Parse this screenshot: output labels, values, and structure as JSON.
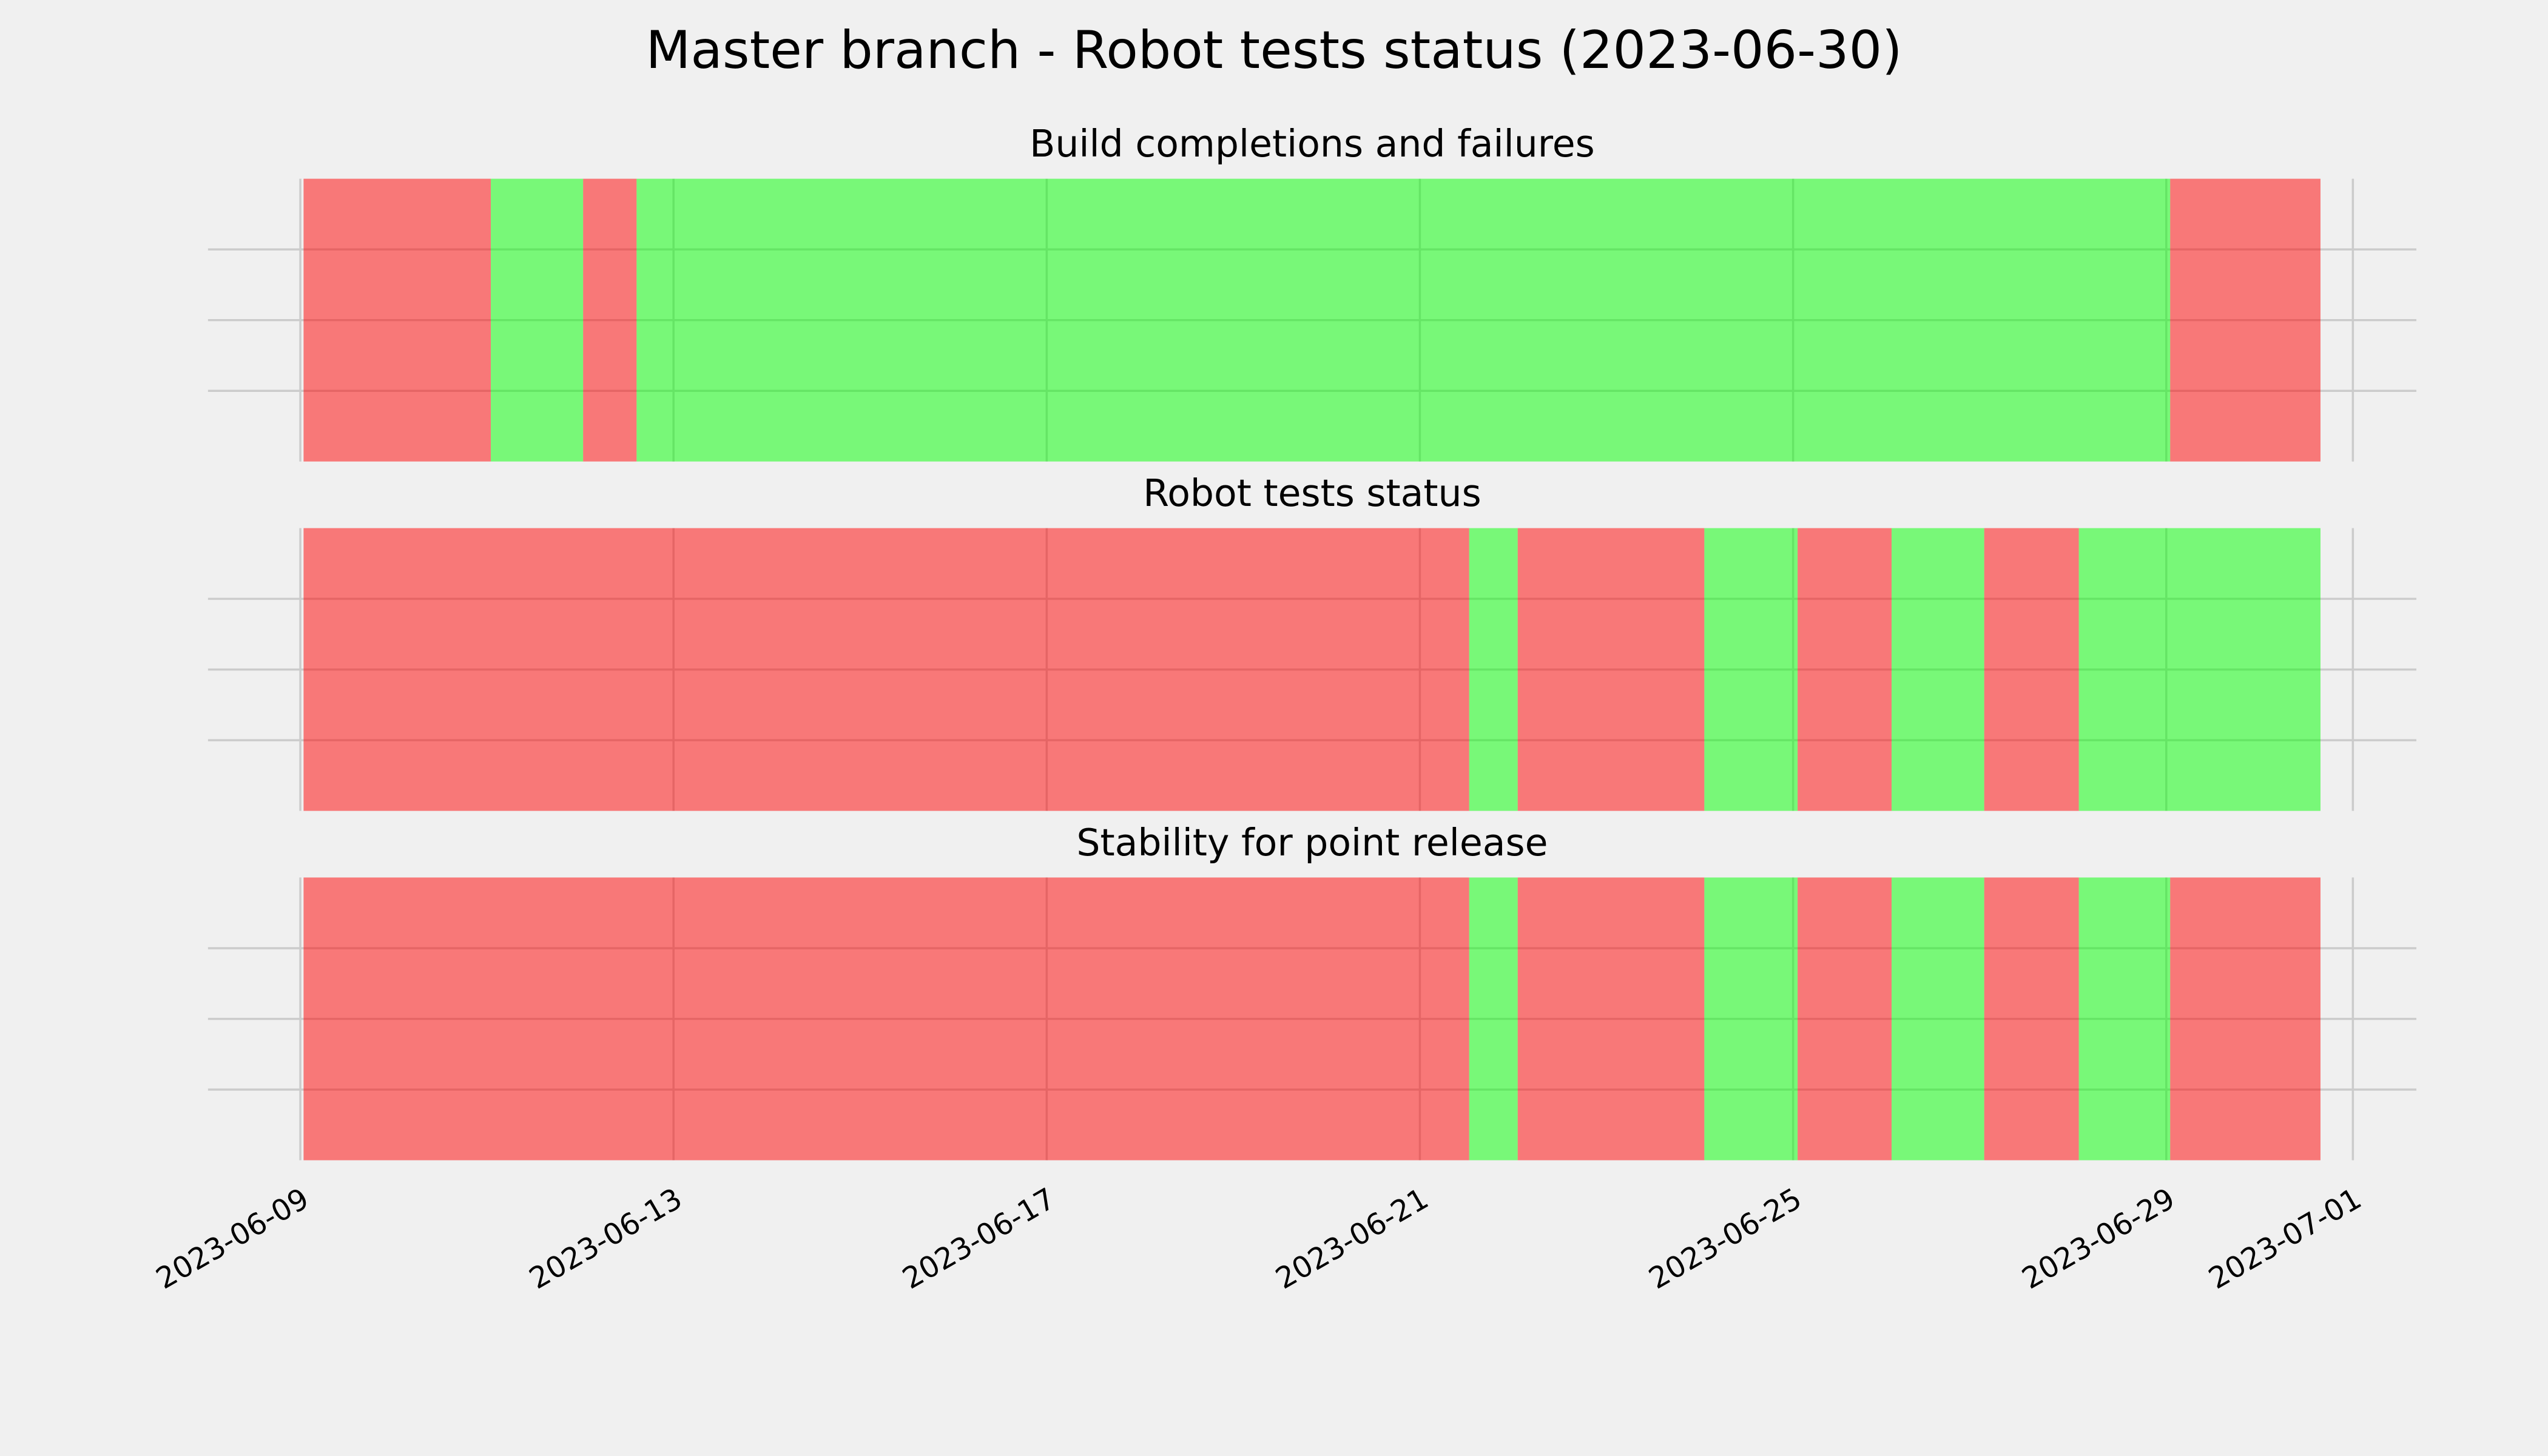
{
  "title": "Master branch - Robot tests status (2023-06-30)",
  "chart_data": [
    {
      "type": "timeline",
      "title": "Build completions and failures",
      "x": [
        "2023-06-09T00:50",
        "2023-06-11T01:00",
        "2023-06-12T00:45",
        "2023-06-12T14:30",
        "2023-06-29T01:00",
        "2023-06-30T15:40"
      ],
      "colors": [
        "#ff0000",
        "#00ff00",
        "#ff0000",
        "#00ff00",
        "#ff0000"
      ],
      "xlim": [
        "2023-06-08T00:15",
        "2023-07-01T16:20"
      ],
      "xticks": [
        "2023-06-09",
        "2023-06-13",
        "2023-06-17",
        "2023-06-21",
        "2023-06-25",
        "2023-06-29",
        "2023-07-01"
      ],
      "ylim": [
        0,
        1
      ],
      "yticks": [
        0.25,
        0.5,
        0.75
      ],
      "grid": true
    },
    {
      "type": "timeline",
      "title": "Robot tests status",
      "x": [
        "2023-06-09T00:50",
        "2023-06-21T12:40",
        "2023-06-22T01:10",
        "2023-06-24T01:10",
        "2023-06-25T01:10",
        "2023-06-26T01:20",
        "2023-06-27T01:10",
        "2023-06-28T01:30",
        "2023-06-30T15:40"
      ],
      "colors": [
        "#ff0000",
        "#00ff00",
        "#ff0000",
        "#00ff00",
        "#ff0000",
        "#00ff00",
        "#ff0000",
        "#00ff00"
      ],
      "xlim": [
        "2023-06-08T00:15",
        "2023-07-01T16:20"
      ],
      "xticks": [
        "2023-06-09",
        "2023-06-13",
        "2023-06-17",
        "2023-06-21",
        "2023-06-25",
        "2023-06-29",
        "2023-07-01"
      ],
      "ylim": [
        0,
        1
      ],
      "yticks": [
        0.25,
        0.5,
        0.75
      ],
      "grid": true
    },
    {
      "type": "timeline",
      "title": "Stability for point release",
      "x": [
        "2023-06-09T00:50",
        "2023-06-21T12:40",
        "2023-06-22T01:10",
        "2023-06-24T01:10",
        "2023-06-25T01:10",
        "2023-06-26T01:20",
        "2023-06-27T01:10",
        "2023-06-28T01:30",
        "2023-06-29T01:00",
        "2023-06-30T15:40"
      ],
      "colors": [
        "#ff0000",
        "#00ff00",
        "#ff0000",
        "#00ff00",
        "#ff0000",
        "#00ff00",
        "#ff0000",
        "#00ff00",
        "#ff0000"
      ],
      "xlim": [
        "2023-06-08T00:15",
        "2023-07-01T16:20"
      ],
      "xticks": [
        "2023-06-09",
        "2023-06-13",
        "2023-06-17",
        "2023-06-21",
        "2023-06-25",
        "2023-06-29",
        "2023-07-01"
      ],
      "ylim": [
        0,
        1
      ],
      "yticks": [
        0.25,
        0.5,
        0.75
      ],
      "grid": true
    }
  ]
}
